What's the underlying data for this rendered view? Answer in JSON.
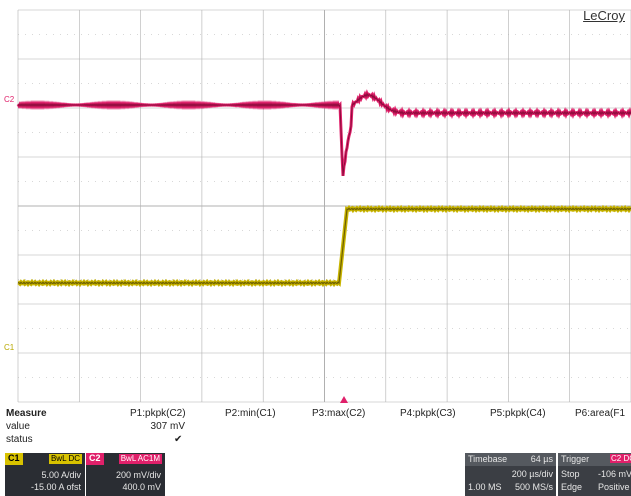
{
  "brand": "LeCroy",
  "channels": {
    "c1_marker": "C1",
    "c2_marker": "C2"
  },
  "colors": {
    "c1_trace": "#c8b400",
    "c1_trace_edge": "#6e6000",
    "c2_trace": "#e0206a",
    "c2_trace_edge": "#8a0a3a",
    "grid": "#b0b0b0"
  },
  "measure": {
    "header": "Measure",
    "columns": [
      "P1:pkpk(C2)",
      "P2:min(C1)",
      "P3:max(C2)",
      "P4:pkpk(C3)",
      "P5:pkpk(C4)",
      "P6:area(F1"
    ],
    "value_label": "value",
    "status_label": "status",
    "p1_value": "307 mV",
    "p1_status": "✔"
  },
  "c1_box": {
    "tag": "C1",
    "coupling": "BwL DC",
    "scale": "5.00 A/div",
    "offset": "-15.00 A ofst"
  },
  "c2_box": {
    "tag": "C2",
    "coupling": "BwL AC1M",
    "scale": "200 mV/div",
    "offset": "400.0 mV"
  },
  "timebase": {
    "label": "Timebase",
    "delay": "64 µs",
    "per_div": "200 µs/div",
    "samples": "1.00 MS",
    "rate": "500 MS/s"
  },
  "trigger": {
    "label": "Trigger",
    "source": "C2 DC",
    "mode": "Stop",
    "level": "-106 mV",
    "type": "Edge",
    "slope": "Positive"
  }
}
